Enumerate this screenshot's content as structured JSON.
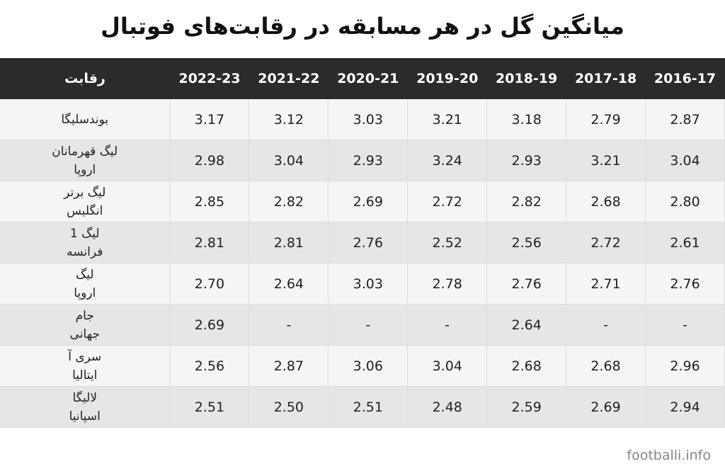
{
  "title": "میانگین گل در هر مسابقه در رقابت‌های فوتبال",
  "table": {
    "header": [
      "رقابت",
      "2022-23",
      "2021-22",
      "2020-21",
      "2019-20",
      "2018-19",
      "2017-18",
      "2016-17"
    ],
    "rows": [
      [
        "بوندسلیگا",
        "3.17",
        "3.12",
        "3.03",
        "3.21",
        "3.18",
        "2.79",
        "2.87"
      ],
      [
        "لیگ قهرمانان\nاروپا",
        "2.98",
        "3.04",
        "2.93",
        "3.24",
        "2.93",
        "3.21",
        "3.04"
      ],
      [
        "لیگ برتر\nانگلیس",
        "2.85",
        "2.82",
        "2.69",
        "2.72",
        "2.82",
        "2.68",
        "2.80"
      ],
      [
        "لیگ 1\nفرانسه",
        "2.81",
        "2.81",
        "2.76",
        "2.52",
        "2.56",
        "2.72",
        "2.61"
      ],
      [
        "لیگ\nاروپا",
        "2.70",
        "2.64",
        "3.03",
        "2.78",
        "2.76",
        "2.71",
        "2.76"
      ],
      [
        "جام\nجهانی",
        "2.69",
        "-",
        "-",
        "-",
        "2.64",
        "-",
        "-"
      ],
      [
        "سری آ\nایتالیا",
        "2.56",
        "2.87",
        "3.06",
        "3.04",
        "2.68",
        "2.68",
        "2.96"
      ],
      [
        "لالیگا\nاسپانیا",
        "2.51",
        "2.50",
        "2.51",
        "2.48",
        "2.59",
        "2.69",
        "2.94"
      ]
    ]
  },
  "source": "footballi.info"
}
